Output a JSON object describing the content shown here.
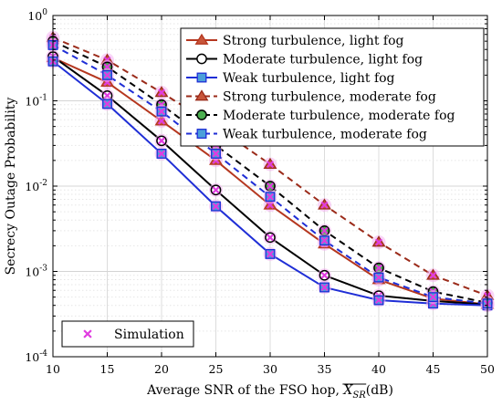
{
  "chart_data": {
    "type": "line",
    "y_scale": "log",
    "xlabel": "Average SNR of the FSO hop, ",
    "xlabel_math": "X",
    "xlabel_sub": "SR",
    "xlabel_unit": "(dB)",
    "ylabel": "Secrecy Outage Probability",
    "xlim": [
      10,
      50
    ],
    "ylim_exp": [
      -4,
      0
    ],
    "x_ticks": [
      "10",
      "15",
      "20",
      "25",
      "30",
      "35",
      "40",
      "45",
      "50"
    ],
    "y_ticks": [
      {
        "base": "10",
        "exp": "0"
      },
      {
        "base": "10",
        "exp": "-1"
      },
      {
        "base": "10",
        "exp": "-2"
      },
      {
        "base": "10",
        "exp": "-3"
      },
      {
        "base": "10",
        "exp": "-4"
      }
    ],
    "grid": true,
    "legend_placement": "top-right",
    "x": [
      10,
      15,
      20,
      25,
      30,
      35,
      40,
      45,
      50
    ],
    "series": [
      {
        "name": "Strong turbulence, light fog",
        "color": "#b5371f",
        "marker": "triangle",
        "marker_fill": "#c8553a",
        "dashed": false,
        "values": [
          0.32,
          0.165,
          0.058,
          0.02,
          0.006,
          0.0021,
          0.0008,
          0.00048,
          0.00041
        ]
      },
      {
        "name": "Moderate turbulence, light fog",
        "color": "#000000",
        "marker": "circle",
        "marker_fill": "#ffffff",
        "dashed": false,
        "values": [
          0.33,
          0.115,
          0.034,
          0.009,
          0.0025,
          0.0009,
          0.00052,
          0.00045,
          0.00041
        ]
      },
      {
        "name": "Weak turbulence, light fog",
        "color": "#1f2ed6",
        "marker": "square",
        "marker_fill": "#4b9fd9",
        "dashed": false,
        "values": [
          0.29,
          0.092,
          0.024,
          0.0058,
          0.0016,
          0.00065,
          0.00046,
          0.00042,
          0.0004
        ]
      },
      {
        "name": "Strong turbulence, moderate fog",
        "color": "#9b2b1a",
        "marker": "triangle",
        "marker_fill": "#c8553a",
        "dashed": true,
        "values": [
          0.55,
          0.3,
          0.125,
          0.05,
          0.018,
          0.006,
          0.0022,
          0.0009,
          0.00052
        ]
      },
      {
        "name": "Moderate turbulence, moderate fog",
        "color": "#000000",
        "marker": "circle",
        "marker_fill": "#4caf50",
        "dashed": true,
        "values": [
          0.5,
          0.25,
          0.09,
          0.03,
          0.01,
          0.003,
          0.0011,
          0.00058,
          0.00043
        ]
      },
      {
        "name": "Weak turbulence, moderate fog",
        "color": "#1f2ed6",
        "marker": "square",
        "marker_fill": "#4b9fd9",
        "dashed": true,
        "values": [
          0.45,
          0.2,
          0.075,
          0.024,
          0.0075,
          0.0023,
          0.00085,
          0.0005,
          0.00042
        ]
      }
    ],
    "simulation": {
      "name": "Simulation",
      "color": "#e03ce0",
      "marker": "x"
    }
  }
}
